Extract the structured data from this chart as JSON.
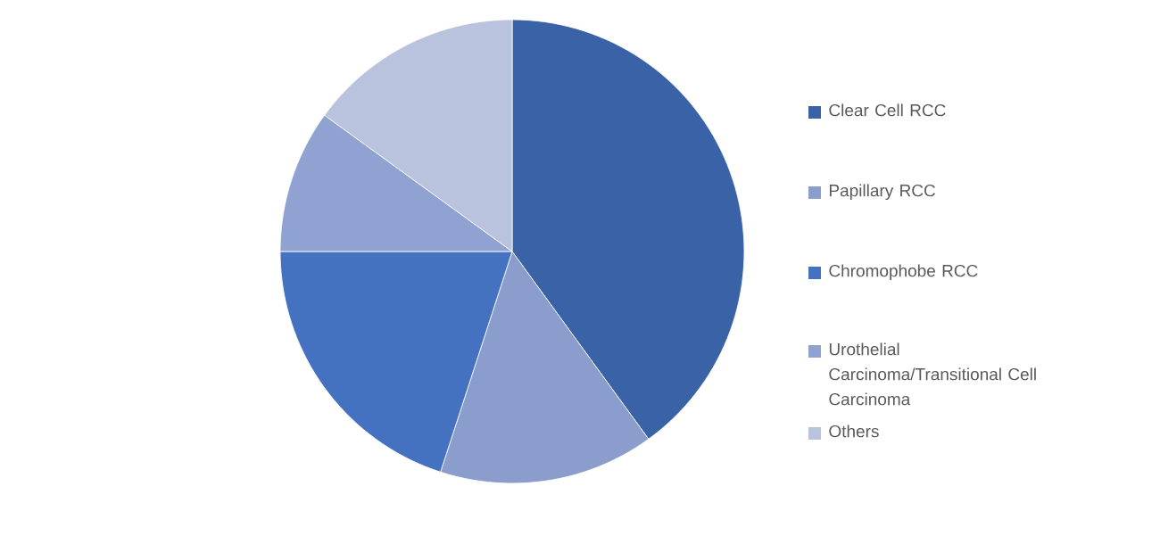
{
  "chart_data": {
    "type": "pie",
    "categories": [
      "Clear Cell RCC",
      "Papillary RCC",
      "Chromophobe RCC",
      "Urothelial Carcinoma/Transitional Cell Carcinoma",
      "Others"
    ],
    "values": [
      40,
      15,
      20,
      10,
      15
    ],
    "colors": [
      "#3a62a7",
      "#8a9dcc",
      "#4472c0",
      "#8fa2d2",
      "#b9c3de"
    ],
    "legend": "right"
  }
}
